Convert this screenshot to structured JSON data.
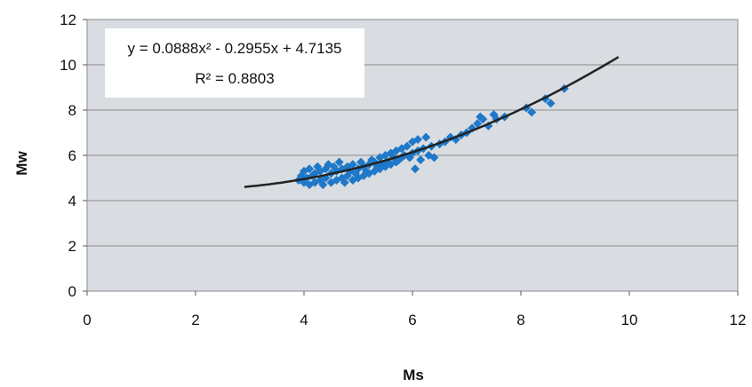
{
  "chart_data": {
    "type": "scatter",
    "title": "",
    "xlabel": "Ms",
    "ylabel": "Mw",
    "xlim": [
      0,
      12
    ],
    "ylim": [
      0,
      12
    ],
    "x_ticks": [
      "0",
      "2",
      "4",
      "6",
      "8",
      "10",
      "12"
    ],
    "y_ticks": [
      "0",
      "2",
      "4",
      "6",
      "8",
      "10",
      "12"
    ],
    "grid": "horizontal",
    "marker_color": "#1f78c8",
    "trend_color": "#222222",
    "plot_background": "#d9dde2",
    "trendline": {
      "type": "polynomial",
      "coefficients": [
        0.0888,
        -0.2955,
        4.7135
      ],
      "x_range": [
        2.9,
        9.8
      ],
      "equation_text": "y = 0.0888x² - 0.2955x + 4.7135",
      "r2_text": "R² = 0.8803"
    },
    "points": [
      [
        3.9,
        4.9
      ],
      [
        3.95,
        5.1
      ],
      [
        4.0,
        4.8
      ],
      [
        4.0,
        5.3
      ],
      [
        4.05,
        5.0
      ],
      [
        4.1,
        4.7
      ],
      [
        4.1,
        5.4
      ],
      [
        4.15,
        5.1
      ],
      [
        4.2,
        4.8
      ],
      [
        4.2,
        5.2
      ],
      [
        4.25,
        5.5
      ],
      [
        4.3,
        4.9
      ],
      [
        4.3,
        5.3
      ],
      [
        4.35,
        4.7
      ],
      [
        4.4,
        5.0
      ],
      [
        4.4,
        5.4
      ],
      [
        4.45,
        5.6
      ],
      [
        4.5,
        4.8
      ],
      [
        4.5,
        5.2
      ],
      [
        4.55,
        5.5
      ],
      [
        4.6,
        4.9
      ],
      [
        4.6,
        5.3
      ],
      [
        4.65,
        5.7
      ],
      [
        4.7,
        5.0
      ],
      [
        4.7,
        5.4
      ],
      [
        4.75,
        4.8
      ],
      [
        4.8,
        5.1
      ],
      [
        4.8,
        5.5
      ],
      [
        4.85,
        5.3
      ],
      [
        4.9,
        4.9
      ],
      [
        4.9,
        5.6
      ],
      [
        4.95,
        5.2
      ],
      [
        5.0,
        5.0
      ],
      [
        5.0,
        5.4
      ],
      [
        5.05,
        5.7
      ],
      [
        5.1,
        5.1
      ],
      [
        5.1,
        5.5
      ],
      [
        5.15,
        5.3
      ],
      [
        5.2,
        5.2
      ],
      [
        5.2,
        5.6
      ],
      [
        5.25,
        5.8
      ],
      [
        5.3,
        5.3
      ],
      [
        5.3,
        5.7
      ],
      [
        5.35,
        5.5
      ],
      [
        5.4,
        5.4
      ],
      [
        5.4,
        5.9
      ],
      [
        5.45,
        5.6
      ],
      [
        5.5,
        5.5
      ],
      [
        5.5,
        6.0
      ],
      [
        5.55,
        5.7
      ],
      [
        5.6,
        5.6
      ],
      [
        5.6,
        6.1
      ],
      [
        5.65,
        5.9
      ],
      [
        5.7,
        5.7
      ],
      [
        5.7,
        6.2
      ],
      [
        5.75,
        5.8
      ],
      [
        5.8,
        5.9
      ],
      [
        5.8,
        6.3
      ],
      [
        5.85,
        6.0
      ],
      [
        5.9,
        6.4
      ],
      [
        5.95,
        5.9
      ],
      [
        6.0,
        6.1
      ],
      [
        6.0,
        6.6
      ],
      [
        6.05,
        5.4
      ],
      [
        6.1,
        6.2
      ],
      [
        6.1,
        6.7
      ],
      [
        6.15,
        5.8
      ],
      [
        6.2,
        6.3
      ],
      [
        6.25,
        6.8
      ],
      [
        6.3,
        6.0
      ],
      [
        6.35,
        6.4
      ],
      [
        6.4,
        5.9
      ],
      [
        6.5,
        6.5
      ],
      [
        6.6,
        6.6
      ],
      [
        6.7,
        6.8
      ],
      [
        6.8,
        6.7
      ],
      [
        6.9,
        6.9
      ],
      [
        7.0,
        7.0
      ],
      [
        7.1,
        7.2
      ],
      [
        7.2,
        7.4
      ],
      [
        7.25,
        7.7
      ],
      [
        7.3,
        7.6
      ],
      [
        7.4,
        7.3
      ],
      [
        7.5,
        7.8
      ],
      [
        7.55,
        7.6
      ],
      [
        7.7,
        7.7
      ],
      [
        8.1,
        8.1
      ],
      [
        8.2,
        7.9
      ],
      [
        8.45,
        8.5
      ],
      [
        8.55,
        8.3
      ],
      [
        8.8,
        8.95
      ]
    ]
  }
}
